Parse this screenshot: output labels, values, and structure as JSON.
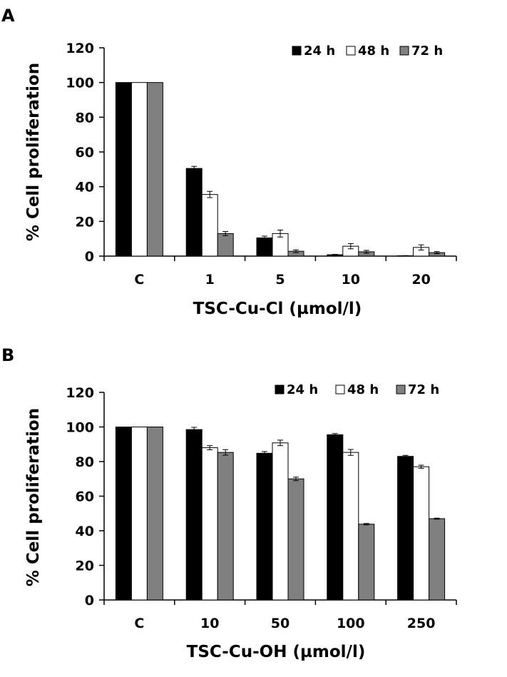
{
  "chart_data": [
    {
      "panel": "A",
      "type": "bar",
      "xlabel": "TSC-Cu-Cl (µmol/l)",
      "ylabel": "% Cell proliferation",
      "ylim": [
        0,
        120
      ],
      "yticks": [
        "0",
        "20",
        "40",
        "60",
        "80",
        "100",
        "120"
      ],
      "categories": [
        "C",
        "1",
        "5",
        "10",
        "20"
      ],
      "legend_position": "top-right",
      "series": [
        {
          "name": "24 h",
          "color": "#000000",
          "values": [
            100,
            50.5,
            10.5,
            0.8,
            0.2
          ],
          "errors": [
            0,
            1.2,
            1.0,
            0.2,
            0.1
          ]
        },
        {
          "name": "48 h",
          "color": "#ffffff",
          "values": [
            100,
            35.5,
            13.0,
            5.7,
            5.0
          ],
          "errors": [
            0,
            1.8,
            2.0,
            1.5,
            1.5
          ]
        },
        {
          "name": "72 h",
          "color": "#808080",
          "values": [
            100,
            13.0,
            2.8,
            2.5,
            2.0
          ],
          "errors": [
            0,
            1.2,
            0.8,
            0.8,
            0.6
          ]
        }
      ]
    },
    {
      "panel": "B",
      "type": "bar",
      "xlabel": "TSC-Cu-OH (µmol/l)",
      "ylabel": "% Cell proliferation",
      "ylim": [
        0,
        120
      ],
      "yticks": [
        "0",
        "20",
        "40",
        "60",
        "80",
        "100",
        "120"
      ],
      "categories": [
        "C",
        "10",
        "50",
        "100",
        "250"
      ],
      "legend_position": "top-right",
      "series": [
        {
          "name": "24 h",
          "color": "#000000",
          "values": [
            100,
            98.5,
            84.8,
            95.5,
            83.0
          ],
          "errors": [
            0,
            1.3,
            1.0,
            0.7,
            0.6
          ]
        },
        {
          "name": "48 h",
          "color": "#ffffff",
          "values": [
            100,
            88.0,
            90.8,
            85.3,
            77.0
          ],
          "errors": [
            0,
            1.2,
            1.6,
            1.7,
            0.9
          ]
        },
        {
          "name": "72 h",
          "color": "#808080",
          "values": [
            100,
            85.3,
            70.0,
            43.8,
            47.0
          ],
          "errors": [
            0,
            1.6,
            1.0,
            0.4,
            0.3
          ]
        }
      ]
    }
  ]
}
